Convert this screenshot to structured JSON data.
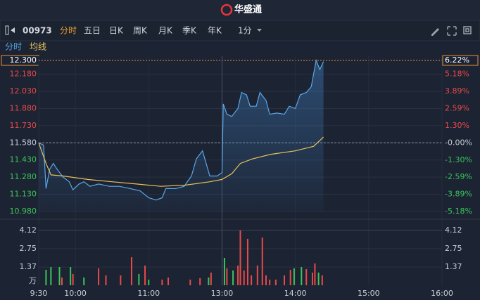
{
  "header": {
    "logo": "华盛通"
  },
  "toolbar": {
    "code": "00973",
    "tabs": [
      "分时",
      "五日",
      "日K",
      "周K",
      "月K",
      "季K",
      "年K"
    ],
    "interval": "1分"
  },
  "chart_data": [
    {
      "type": "line",
      "xlim": [
        0,
        330
      ],
      "xticks": [
        {
          "value": 0,
          "label": "9:30"
        },
        {
          "value": 30,
          "label": "10:00"
        },
        {
          "value": 90,
          "label": "11:00"
        },
        {
          "value": 150,
          "label": "13:00"
        },
        {
          "value": 210,
          "label": "14:00"
        },
        {
          "value": 270,
          "label": "15:00"
        },
        {
          "value": 330,
          "label": "16:00"
        }
      ],
      "ylim": [
        10.98,
        12.3
      ],
      "yticks": [
        {
          "value": 12.3,
          "label": "12.300"
        },
        {
          "value": 12.18,
          "label": "12.180"
        },
        {
          "value": 12.03,
          "label": "12.030"
        },
        {
          "value": 11.88,
          "label": "11.880"
        },
        {
          "value": 11.73,
          "label": "11.730"
        },
        {
          "value": 11.58,
          "label": "11.580"
        },
        {
          "value": 11.43,
          "label": "11.430"
        },
        {
          "value": 11.28,
          "label": "11.280"
        },
        {
          "value": 11.13,
          "label": "11.130"
        },
        {
          "value": 10.98,
          "label": "10.980"
        }
      ],
      "y2lim": [
        -5.18,
        6.22
      ],
      "y2ticks": [
        {
          "value": 6.22,
          "label": "6.22%"
        },
        {
          "value": 5.18,
          "label": "5.18%"
        },
        {
          "value": 3.89,
          "label": "3.89%"
        },
        {
          "value": 2.59,
          "label": "2.59%"
        },
        {
          "value": 1.3,
          "label": "1.30%"
        },
        {
          "value": 0,
          "label": "-0.00%"
        },
        {
          "value": -1.3,
          "label": "-1.30%"
        },
        {
          "value": -2.59,
          "label": "-2.59%"
        },
        {
          "value": -3.89,
          "label": "-3.89%"
        },
        {
          "value": -5.18,
          "label": "-5.18%"
        }
      ],
      "grid": true,
      "series": [
        {
          "name": "分时",
          "color": "#5aa7e8",
          "x": [
            0,
            4,
            6,
            9,
            12,
            15,
            20,
            25,
            28,
            33,
            37,
            42,
            49,
            58,
            66,
            75,
            83,
            90,
            96,
            101,
            104,
            112,
            119,
            125,
            129,
            134,
            137,
            140,
            146,
            150,
            151,
            154,
            158,
            163,
            166,
            170,
            173,
            178,
            181,
            186,
            189,
            195,
            201,
            205,
            210,
            214,
            219,
            223,
            227,
            230,
            233
          ],
          "values": [
            11.58,
            11.56,
            11.18,
            11.35,
            11.4,
            11.35,
            11.28,
            11.24,
            11.17,
            11.22,
            11.24,
            11.2,
            11.22,
            11.2,
            11.2,
            11.18,
            11.16,
            11.1,
            11.08,
            11.1,
            11.18,
            11.18,
            11.2,
            11.29,
            11.44,
            11.51,
            11.4,
            11.29,
            11.29,
            11.32,
            11.92,
            11.83,
            11.81,
            11.88,
            12.02,
            12.0,
            11.9,
            11.9,
            12.02,
            11.95,
            11.83,
            11.84,
            11.83,
            11.9,
            11.88,
            12.0,
            12.02,
            12.07,
            12.3,
            12.22,
            12.29
          ]
        },
        {
          "name": "均线",
          "color": "#e8c25a",
          "x": [
            0,
            6,
            10,
            20,
            40,
            60,
            80,
            100,
            120,
            140,
            150,
            158,
            165,
            175,
            190,
            210,
            225,
            233
          ],
          "values": [
            11.58,
            11.4,
            11.3,
            11.29,
            11.26,
            11.24,
            11.22,
            11.2,
            11.21,
            11.24,
            11.26,
            11.31,
            11.4,
            11.44,
            11.48,
            11.51,
            11.55,
            11.63
          ]
        }
      ]
    },
    {
      "type": "bar",
      "unit": "万",
      "xlim": [
        0,
        330
      ],
      "ylim": [
        0,
        4.12
      ],
      "yticks": [
        4.12,
        2.75,
        1.37
      ],
      "x": [
        6,
        10,
        17,
        19,
        26,
        28,
        37,
        49,
        55,
        67,
        76,
        82,
        87,
        90,
        101,
        106,
        124,
        132,
        139,
        141,
        152,
        154,
        159,
        163,
        165,
        168,
        171,
        174,
        179,
        183,
        186,
        189,
        194,
        201,
        206,
        209,
        215,
        219,
        224,
        226,
        229,
        232
      ],
      "values": [
        1.16,
        1.37,
        1.37,
        0.58,
        1.37,
        0.85,
        0.58,
        1.27,
        0.74,
        0.74,
        2.11,
        0.85,
        1.48,
        0.42,
        0.42,
        0.58,
        0.42,
        0.53,
        0.58,
        0.95,
        2.06,
        1.27,
        1.11,
        1.48,
        4.12,
        1.11,
        3.49,
        0.74,
        1.48,
        3.59,
        0.74,
        0.42,
        0.42,
        0.74,
        1.16,
        1.27,
        1.37,
        1.21,
        0.95,
        1.64,
        0.95,
        0.74
      ],
      "colors": [
        "#3cc45a",
        "#3cc45a",
        "#3cc45a",
        "#e84a4a",
        "#3cc45a",
        "#e84a4a",
        "#3cc45a",
        "#e84a4a",
        "#e84a4a",
        "#e84a4a",
        "#e84a4a",
        "#3cc45a",
        "#e84a4a",
        "#3cc45a",
        "#e84a4a",
        "#e84a4a",
        "#e84a4a",
        "#e84a4a",
        "#3cc45a",
        "#e84a4a",
        "#3cc45a",
        "#e84a4a",
        "#3cc45a",
        "#e84a4a",
        "#e84a4a",
        "#e84a4a",
        "#e84a4a",
        "#e84a4a",
        "#e84a4a",
        "#e84a4a",
        "#e84a4a",
        "#e84a4a",
        "#e84a4a",
        "#e84a4a",
        "#e84a4a",
        "#3cc45a",
        "#3cc45a",
        "#e84a4a",
        "#e84a4a",
        "#e84a4a",
        "#3cc45a",
        "#e84a4a"
      ]
    }
  ]
}
